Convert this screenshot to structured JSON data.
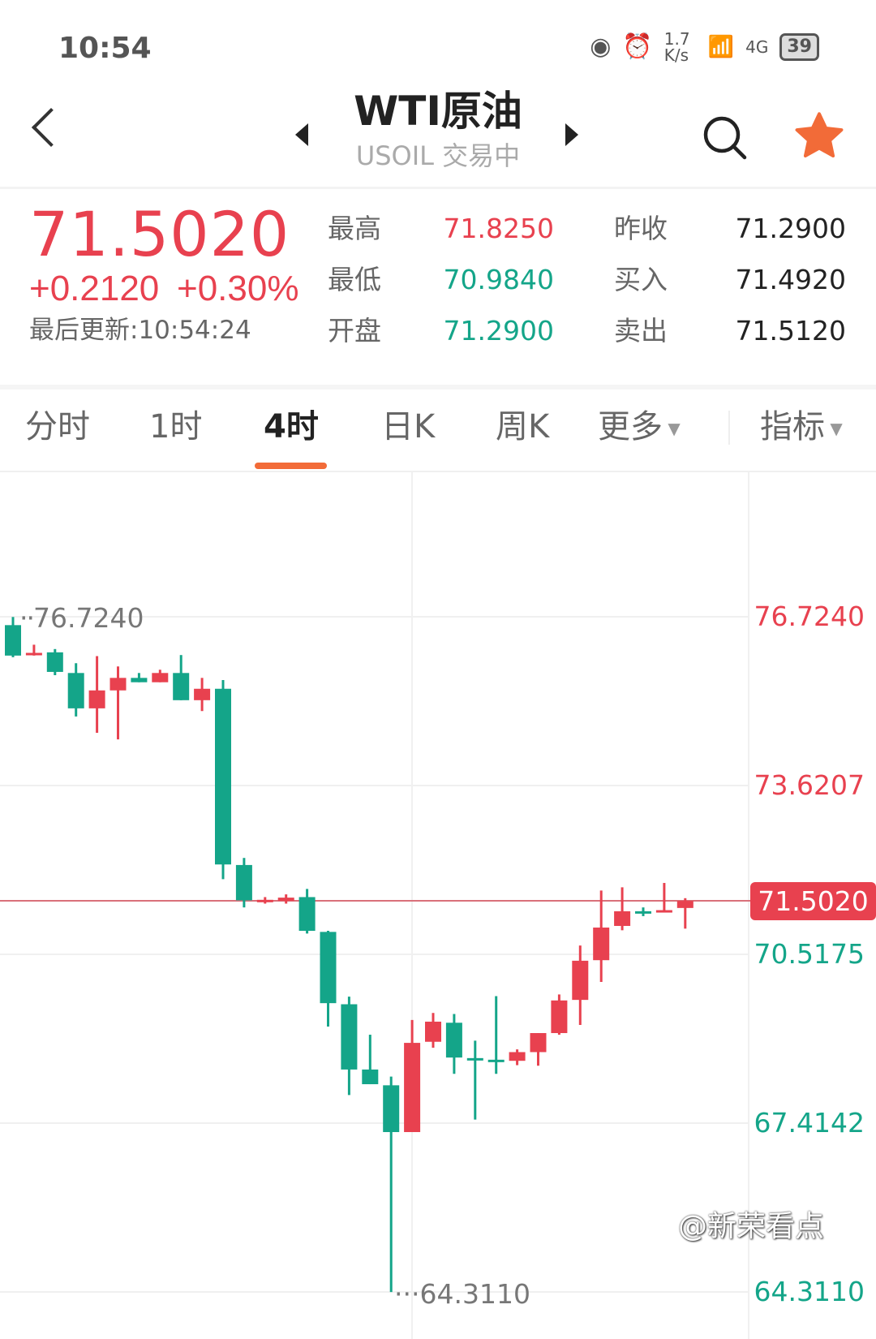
{
  "status_bar": {
    "time": "10:54",
    "net_speed": "1.7 K/s",
    "network": "4G",
    "wifi_label": "6",
    "battery": "39"
  },
  "header": {
    "title": "WTI原油",
    "subtitle": "USOIL 交易中"
  },
  "quote": {
    "price": "71.5020",
    "change": "+0.2120",
    "change_pct": "+0.30%",
    "last_update": "最后更新:10:54:24",
    "rows": [
      {
        "l1": "最高",
        "v1": "71.8250",
        "c1": "#e8414f",
        "l2": "昨收",
        "v2": "71.2900"
      },
      {
        "l1": "最低",
        "v1": "70.9840",
        "c1": "#14a589",
        "l2": "买入",
        "v2": "71.4920"
      },
      {
        "l1": "开盘",
        "v1": "71.2900",
        "c1": "#14a589",
        "l2": "卖出",
        "v2": "71.5120"
      }
    ]
  },
  "tabs": {
    "items": [
      "分时",
      "1时",
      "4时",
      "日K",
      "周K",
      "更多"
    ],
    "active": "4时",
    "indicator": "指标"
  },
  "colors": {
    "up": "#e8414f",
    "down": "#14a589",
    "accent": "#f26b38"
  },
  "watermark": "@新荣看点",
  "chart_data": {
    "type": "candlestick",
    "interval": "4时",
    "ylim": [
      64.311,
      76.724
    ],
    "y_ticks": [
      "76.7240",
      "73.6207",
      "70.5175",
      "67.4142",
      "64.3110"
    ],
    "last_price": "71.5020",
    "max_marker": "76.7240",
    "min_marker": "64.3110",
    "candles": [
      [
        76.57,
        76.72,
        75.98,
        76.01
      ],
      [
        76.05,
        76.21,
        76.01,
        76.06
      ],
      [
        76.07,
        76.13,
        75.65,
        75.71
      ],
      [
        75.69,
        75.87,
        74.89,
        75.04
      ],
      [
        75.04,
        76.0,
        74.59,
        75.37
      ],
      [
        75.37,
        75.81,
        74.47,
        75.6
      ],
      [
        75.6,
        75.69,
        75.52,
        75.52
      ],
      [
        75.52,
        75.75,
        75.52,
        75.69
      ],
      [
        75.69,
        76.02,
        75.19,
        75.19
      ],
      [
        75.19,
        75.6,
        74.99,
        75.4
      ],
      [
        75.4,
        75.56,
        71.9,
        72.17
      ],
      [
        72.16,
        72.29,
        71.38,
        71.51
      ],
      [
        71.5,
        71.57,
        71.45,
        71.52
      ],
      [
        71.5,
        71.62,
        71.45,
        71.56
      ],
      [
        71.57,
        71.72,
        70.9,
        70.95
      ],
      [
        70.93,
        70.95,
        69.19,
        69.62
      ],
      [
        69.6,
        69.74,
        67.93,
        68.4
      ],
      [
        68.4,
        69.04,
        68.13,
        68.13
      ],
      [
        68.11,
        68.27,
        64.31,
        67.25
      ],
      [
        67.25,
        69.31,
        67.25,
        68.89
      ],
      [
        68.91,
        69.44,
        68.8,
        69.28
      ],
      [
        69.26,
        69.42,
        68.32,
        68.62
      ],
      [
        68.61,
        68.93,
        67.48,
        68.6
      ],
      [
        68.58,
        69.75,
        68.32,
        68.57
      ],
      [
        68.56,
        68.77,
        68.48,
        68.72
      ],
      [
        68.72,
        69.07,
        68.47,
        69.07
      ],
      [
        69.07,
        69.78,
        69.04,
        69.67
      ],
      [
        69.68,
        70.68,
        69.22,
        70.4
      ],
      [
        70.41,
        71.69,
        70.01,
        71.01
      ],
      [
        71.04,
        71.75,
        70.96,
        71.31
      ],
      [
        71.31,
        71.38,
        71.22,
        71.3
      ],
      [
        71.3,
        71.83,
        71.3,
        71.33
      ],
      [
        71.37,
        71.55,
        70.99,
        71.5
      ]
    ],
    "candle_format": [
      "open",
      "high",
      "low",
      "close"
    ]
  }
}
